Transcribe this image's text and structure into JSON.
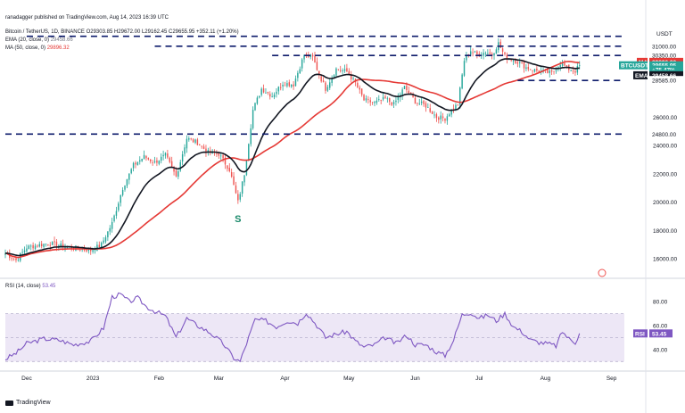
{
  "header": {
    "publisher_line": "ranadagger published on TradingView.com, Aug 14, 2023 16:39 UTC",
    "symbol_line": "Bitcoin / TetherUS, 1D, BINANCE  O29303.85  H29672.00  L29162.45  C29655.95  +352.11 (+1.20%)",
    "ema_label": "EMA (20, close, 0)",
    "ema_value": "29458.66",
    "ma_label": "MA (50, close, 0)",
    "ma_value": "29896.32",
    "rsi_label": "RSI (14, close)",
    "rsi_value": "53.45"
  },
  "footer": {
    "brand": "TradingView"
  },
  "annotations": {
    "s_label": "S"
  },
  "colors": {
    "up": "#26a69a",
    "down": "#ef5350",
    "ema": "#131722",
    "ma": "#e53935",
    "rsi": "#7e57c2",
    "rsi_band": "#ede7f6",
    "dashed": "#0d1b6b",
    "btc_tag": "#26a69a"
  },
  "chart_data": [
    {
      "type": "candlestick",
      "title": "Bitcoin / TetherUS, 1D, BINANCE",
      "y_axis_label": "USDT",
      "y_ticks": [
        16000,
        18000,
        20000,
        22000,
        24000,
        26000
      ],
      "ylim": [
        15000,
        32500
      ],
      "x_ticks": [
        {
          "label": "Dec",
          "day": 0
        },
        {
          "label": "2023",
          "day": 31
        },
        {
          "label": "Feb",
          "day": 62
        },
        {
          "label": "Mar",
          "day": 90
        },
        {
          "label": "Apr",
          "day": 121
        },
        {
          "label": "May",
          "day": 151
        },
        {
          "label": "Jun",
          "day": 182
        },
        {
          "label": "Jul",
          "day": 212
        },
        {
          "label": "Aug",
          "day": 243
        },
        {
          "label": "Sep",
          "day": 274
        }
      ],
      "x_range_days": [
        -10,
        280
      ],
      "price_anchors": [
        {
          "day": -10,
          "price": 16400
        },
        {
          "day": -5,
          "price": 15900
        },
        {
          "day": 0,
          "price": 16800
        },
        {
          "day": 10,
          "price": 17100
        },
        {
          "day": 20,
          "price": 16800
        },
        {
          "day": 30,
          "price": 16600
        },
        {
          "day": 35,
          "price": 17000
        },
        {
          "day": 40,
          "price": 18500
        },
        {
          "day": 45,
          "price": 21000
        },
        {
          "day": 50,
          "price": 22600
        },
        {
          "day": 55,
          "price": 23200
        },
        {
          "day": 60,
          "price": 22800
        },
        {
          "day": 65,
          "price": 23300
        },
        {
          "day": 70,
          "price": 21800
        },
        {
          "day": 75,
          "price": 24500
        },
        {
          "day": 80,
          "price": 24200
        },
        {
          "day": 85,
          "price": 23500
        },
        {
          "day": 90,
          "price": 23400
        },
        {
          "day": 95,
          "price": 22300
        },
        {
          "day": 99,
          "price": 20000
        },
        {
          "day": 102,
          "price": 22000
        },
        {
          "day": 106,
          "price": 26500
        },
        {
          "day": 110,
          "price": 28000
        },
        {
          "day": 115,
          "price": 27500
        },
        {
          "day": 120,
          "price": 28400
        },
        {
          "day": 125,
          "price": 28300
        },
        {
          "day": 130,
          "price": 30400
        },
        {
          "day": 134,
          "price": 30200
        },
        {
          "day": 137,
          "price": 29000
        },
        {
          "day": 140,
          "price": 28000
        },
        {
          "day": 145,
          "price": 29400
        },
        {
          "day": 150,
          "price": 29200
        },
        {
          "day": 154,
          "price": 28400
        },
        {
          "day": 158,
          "price": 27200
        },
        {
          "day": 163,
          "price": 27000
        },
        {
          "day": 168,
          "price": 27300
        },
        {
          "day": 172,
          "price": 26900
        },
        {
          "day": 177,
          "price": 28100
        },
        {
          "day": 182,
          "price": 27100
        },
        {
          "day": 187,
          "price": 26800
        },
        {
          "day": 192,
          "price": 26000
        },
        {
          "day": 196,
          "price": 25900
        },
        {
          "day": 199,
          "price": 26500
        },
        {
          "day": 202,
          "price": 26900
        },
        {
          "day": 205,
          "price": 30000
        },
        {
          "day": 208,
          "price": 30700
        },
        {
          "day": 211,
          "price": 30400
        },
        {
          "day": 215,
          "price": 30600
        },
        {
          "day": 218,
          "price": 30400
        },
        {
          "day": 221,
          "price": 31200
        },
        {
          "day": 224,
          "price": 30300
        },
        {
          "day": 227,
          "price": 30100
        },
        {
          "day": 230,
          "price": 29900
        },
        {
          "day": 234,
          "price": 29500
        },
        {
          "day": 238,
          "price": 29300
        },
        {
          "day": 242,
          "price": 29200
        },
        {
          "day": 246,
          "price": 29100
        },
        {
          "day": 250,
          "price": 29800
        },
        {
          "day": 254,
          "price": 29400
        },
        {
          "day": 257,
          "price": 29250
        },
        {
          "day": 259,
          "price": 29655
        }
      ],
      "levels": [
        {
          "name": "level-31000",
          "price": 31000,
          "day_from": 60,
          "day_to": 280
        },
        {
          "name": "level-30350",
          "price": 30350,
          "day_from": 115,
          "day_to": 280
        },
        {
          "name": "level-28585",
          "price": 28585,
          "day_from": 230,
          "day_to": 280
        },
        {
          "name": "level-24800",
          "price": 24800,
          "day_from": -10,
          "day_to": 280
        },
        {
          "name": "level-top",
          "price": 31700,
          "day_from": 0,
          "day_to": 280
        }
      ],
      "price_tags": [
        {
          "label": "31000.00",
          "price": 31000,
          "style": "plain"
        },
        {
          "label": "30350.00",
          "price": 30350,
          "style": "plain"
        },
        {
          "label": "29896.32",
          "price": 29896.32,
          "style": "ma"
        },
        {
          "label": "29655.95",
          "price": 29655.95,
          "style": "btc"
        },
        {
          "label": "+75.47%",
          "price": 29350,
          "style": "btc"
        },
        {
          "label": "07:20:22",
          "price": 29050,
          "style": "btc"
        },
        {
          "label": "29458.66",
          "price": 28950,
          "style": "ema"
        },
        {
          "label": "28585.00",
          "price": 28585,
          "style": "plain"
        },
        {
          "label": "24800.00",
          "price": 24800,
          "style": "plain"
        }
      ],
      "tag_names": {
        "ma": "MA",
        "btc": "BTCUSDT",
        "ema": "EMA"
      },
      "s_marker": {
        "day": 99,
        "price": 18600
      }
    },
    {
      "type": "line",
      "title": "RSI (14, close)",
      "y_ticks": [
        40,
        60,
        80
      ],
      "ylim": [
        25,
        95
      ],
      "band": [
        30,
        70
      ],
      "current_value": 53.45,
      "current_label": "53.45",
      "tag_name": "RSI",
      "anchors": [
        {
          "day": -10,
          "rsi": 32
        },
        {
          "day": -5,
          "rsi": 37
        },
        {
          "day": 0,
          "rsi": 45
        },
        {
          "day": 8,
          "rsi": 49
        },
        {
          "day": 15,
          "rsi": 48
        },
        {
          "day": 22,
          "rsi": 44
        },
        {
          "day": 30,
          "rsi": 47
        },
        {
          "day": 36,
          "rsi": 58
        },
        {
          "day": 40,
          "rsi": 84
        },
        {
          "day": 44,
          "rsi": 86
        },
        {
          "day": 48,
          "rsi": 80
        },
        {
          "day": 52,
          "rsi": 83
        },
        {
          "day": 56,
          "rsi": 76
        },
        {
          "day": 60,
          "rsi": 72
        },
        {
          "day": 65,
          "rsi": 68
        },
        {
          "day": 70,
          "rsi": 50
        },
        {
          "day": 75,
          "rsi": 66
        },
        {
          "day": 80,
          "rsi": 60
        },
        {
          "day": 86,
          "rsi": 54
        },
        {
          "day": 92,
          "rsi": 45
        },
        {
          "day": 97,
          "rsi": 33
        },
        {
          "day": 100,
          "rsi": 30
        },
        {
          "day": 104,
          "rsi": 50
        },
        {
          "day": 107,
          "rsi": 65
        },
        {
          "day": 112,
          "rsi": 64
        },
        {
          "day": 117,
          "rsi": 59
        },
        {
          "day": 122,
          "rsi": 64
        },
        {
          "day": 127,
          "rsi": 62
        },
        {
          "day": 131,
          "rsi": 71
        },
        {
          "day": 136,
          "rsi": 60
        },
        {
          "day": 140,
          "rsi": 50
        },
        {
          "day": 145,
          "rsi": 53
        },
        {
          "day": 150,
          "rsi": 55
        },
        {
          "day": 154,
          "rsi": 47
        },
        {
          "day": 158,
          "rsi": 42
        },
        {
          "day": 163,
          "rsi": 44
        },
        {
          "day": 168,
          "rsi": 50
        },
        {
          "day": 173,
          "rsi": 45
        },
        {
          "day": 178,
          "rsi": 52
        },
        {
          "day": 182,
          "rsi": 44
        },
        {
          "day": 187,
          "rsi": 44
        },
        {
          "day": 192,
          "rsi": 38
        },
        {
          "day": 196,
          "rsi": 35
        },
        {
          "day": 200,
          "rsi": 48
        },
        {
          "day": 204,
          "rsi": 69
        },
        {
          "day": 208,
          "rsi": 71
        },
        {
          "day": 212,
          "rsi": 66
        },
        {
          "day": 216,
          "rsi": 69
        },
        {
          "day": 220,
          "rsi": 64
        },
        {
          "day": 224,
          "rsi": 70
        },
        {
          "day": 228,
          "rsi": 59
        },
        {
          "day": 232,
          "rsi": 55
        },
        {
          "day": 236,
          "rsi": 48
        },
        {
          "day": 240,
          "rsi": 46
        },
        {
          "day": 244,
          "rsi": 45
        },
        {
          "day": 248,
          "rsi": 43
        },
        {
          "day": 251,
          "rsi": 55
        },
        {
          "day": 254,
          "rsi": 49
        },
        {
          "day": 257,
          "rsi": 46
        },
        {
          "day": 259,
          "rsi": 53.45
        }
      ]
    }
  ]
}
